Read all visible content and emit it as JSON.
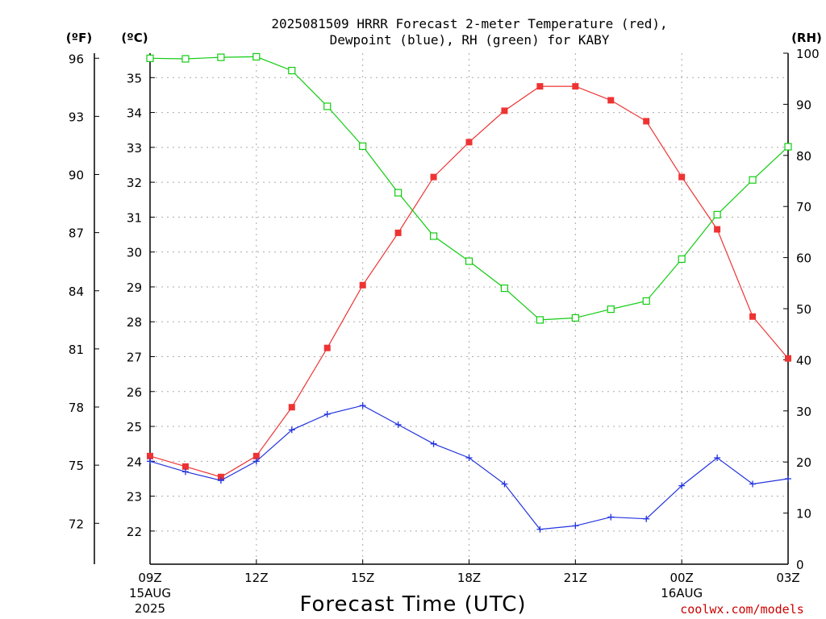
{
  "chart_data": {
    "type": "line",
    "title_line1": "2025081509 HRRR Forecast 2-meter Temperature (red),",
    "title_line2": "Dewpoint (blue), RH (green) for KABY",
    "xlabel": "Forecast Time (UTC)",
    "credit": "coolwx.com/models",
    "units": {
      "fahrenheit": "(ºF)",
      "celsius": "(ºC)",
      "rh": "(RH)"
    },
    "x_ticks": [
      {
        "hour": 0,
        "label": "09Z",
        "date_line1": "15AUG",
        "date_line2": "2025"
      },
      {
        "hour": 3,
        "label": "12Z"
      },
      {
        "hour": 6,
        "label": "15Z"
      },
      {
        "hour": 9,
        "label": "18Z"
      },
      {
        "hour": 12,
        "label": "21Z"
      },
      {
        "hour": 15,
        "label": "00Z",
        "date_line1": "16AUG"
      },
      {
        "hour": 18,
        "label": "03Z"
      }
    ],
    "x_range": [
      0,
      18
    ],
    "celsius_axis": {
      "range": [
        21.05,
        35.7
      ],
      "ticks": [
        22,
        23,
        24,
        25,
        26,
        27,
        28,
        29,
        30,
        31,
        32,
        33,
        34,
        35
      ]
    },
    "fahrenheit_axis": {
      "ticks": [
        72,
        75,
        78,
        81,
        84,
        87,
        90,
        93,
        96
      ]
    },
    "rh_axis": {
      "range": [
        0,
        100
      ],
      "ticks": [
        0,
        10,
        20,
        30,
        40,
        50,
        60,
        70,
        80,
        90,
        100
      ]
    },
    "grid": true,
    "colors": {
      "temperature": "#ee3333",
      "dewpoint": "#2233dd",
      "rh": "#11cc11",
      "grid": "#aaaaaa",
      "credit": "#cc0000"
    },
    "series": [
      {
        "axis": "celsius",
        "marker": "filled-square",
        "values": [
          24.15,
          23.85,
          23.55,
          24.15,
          25.55,
          27.25,
          29.05,
          30.55,
          32.15,
          33.15,
          34.05,
          34.75,
          34.75,
          34.35,
          33.75,
          32.15,
          30.65,
          28.15,
          26.95
        ]
      },
      {
        "axis": "celsius",
        "marker": "plus",
        "values": [
          24.0,
          23.7,
          23.45,
          24.0,
          24.9,
          25.35,
          25.6,
          25.05,
          24.5,
          24.1,
          23.35,
          22.05,
          22.15,
          22.4,
          22.35,
          23.3,
          24.1,
          23.35,
          23.5
        ]
      },
      {
        "axis": "rh",
        "marker": "open-square",
        "values": [
          99.0,
          98.9,
          99.2,
          99.3,
          96.6,
          89.6,
          81.8,
          72.7,
          64.2,
          59.3,
          54.0,
          47.8,
          48.2,
          49.9,
          51.5,
          59.7,
          68.4,
          75.2,
          81.7
        ]
      }
    ]
  }
}
